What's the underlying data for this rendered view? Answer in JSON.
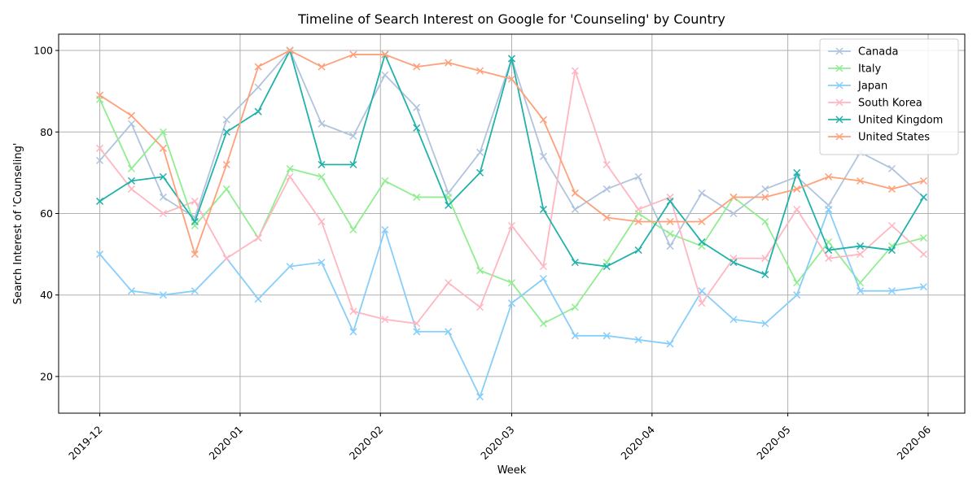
{
  "chart_data": {
    "type": "line",
    "title": "Timeline of Search Interest on Google for 'Counseling' by Country",
    "xlabel": "Week",
    "ylabel": "Search Interest of 'Counseling'",
    "x": [
      "2019-12-01",
      "2019-12-08",
      "2019-12-15",
      "2019-12-22",
      "2019-12-29",
      "2020-01-05",
      "2020-01-12",
      "2020-01-19",
      "2020-01-26",
      "2020-02-02",
      "2020-02-09",
      "2020-02-16",
      "2020-02-23",
      "2020-03-01",
      "2020-03-08",
      "2020-03-15",
      "2020-03-22",
      "2020-03-29",
      "2020-04-05",
      "2020-04-12",
      "2020-04-19",
      "2020-04-26",
      "2020-05-03",
      "2020-05-10",
      "2020-05-17",
      "2020-05-24",
      "2020-05-31"
    ],
    "x_ticks": [
      "2019-12",
      "2020-01",
      "2020-02",
      "2020-03",
      "2020-04",
      "2020-05",
      "2020-06"
    ],
    "y_ticks": [
      20,
      40,
      60,
      80,
      100
    ],
    "ylim": [
      11,
      104
    ],
    "grid": true,
    "legend_position": "top-right",
    "marker": "x",
    "series": [
      {
        "name": "Canada",
        "color": "#b0c4de",
        "values": [
          73,
          82,
          64,
          59,
          83,
          91,
          100,
          82,
          79,
          94,
          86,
          65,
          75,
          98,
          74,
          61,
          66,
          69,
          52,
          65,
          60,
          66,
          69,
          62,
          75,
          71,
          64
        ]
      },
      {
        "name": "Italy",
        "color": "#90ee90",
        "values": [
          88,
          71,
          80,
          57,
          66,
          54,
          71,
          69,
          56,
          68,
          64,
          64,
          46,
          43,
          33,
          37,
          48,
          60,
          55,
          52,
          64,
          58,
          43,
          53,
          43,
          52,
          54
        ]
      },
      {
        "name": "Japan",
        "color": "#87cefa",
        "values": [
          50,
          41,
          40,
          41,
          49,
          39,
          47,
          48,
          31,
          56,
          31,
          31,
          15,
          38,
          44,
          30,
          30,
          29,
          28,
          41,
          34,
          33,
          40,
          61,
          41,
          41,
          42
        ]
      },
      {
        "name": "South Korea",
        "color": "#ffb6c1",
        "values": [
          76,
          66,
          60,
          63,
          49,
          54,
          69,
          58,
          36,
          34,
          33,
          43,
          37,
          57,
          47,
          95,
          72,
          61,
          64,
          38,
          49,
          49,
          61,
          49,
          50,
          57,
          50
        ]
      },
      {
        "name": "United Kingdom",
        "color": "#20b2aa",
        "values": [
          63,
          68,
          69,
          58,
          80,
          85,
          100,
          72,
          72,
          99,
          81,
          62,
          70,
          98,
          61,
          48,
          47,
          51,
          63,
          53,
          48,
          45,
          70,
          51,
          52,
          51,
          64
        ]
      },
      {
        "name": "United States",
        "color": "#ffa07a",
        "values": [
          89,
          84,
          76,
          50,
          72,
          96,
          100,
          96,
          99,
          99,
          96,
          97,
          95,
          93,
          83,
          65,
          59,
          58,
          58,
          58,
          64,
          64,
          66,
          69,
          68,
          66,
          68
        ]
      }
    ]
  }
}
